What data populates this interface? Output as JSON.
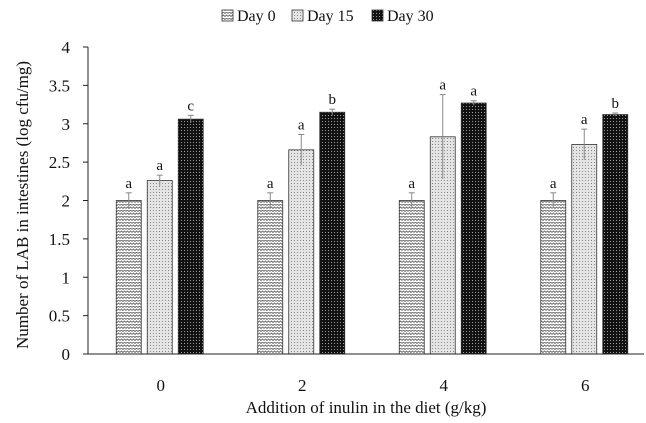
{
  "chart_data": {
    "type": "bar",
    "categories": [
      "0",
      "2",
      "4",
      "6"
    ],
    "series": [
      {
        "name": "Day 0",
        "values": [
          2.0,
          2.0,
          2.0,
          2.0
        ],
        "errors": [
          0.1,
          0.1,
          0.1,
          0.1
        ],
        "labels": [
          "a",
          "a",
          "a",
          "a"
        ],
        "pattern": "zigzag",
        "color": "#ffffff"
      },
      {
        "name": "Day 15",
        "values": [
          2.26,
          2.66,
          2.83,
          2.73
        ],
        "errors": [
          0.07,
          0.2,
          0.55,
          0.2
        ],
        "labels": [
          "a",
          "a",
          "a",
          "a"
        ],
        "pattern": "dots-light",
        "color": "#d8d8d8"
      },
      {
        "name": "Day 30",
        "values": [
          3.06,
          3.15,
          3.27,
          3.12
        ],
        "errors": [
          0.05,
          0.04,
          0.03,
          0.02
        ],
        "labels": [
          "c",
          "b",
          "a",
          "b"
        ],
        "pattern": "dots-dark",
        "color": "#1a1a1a"
      }
    ],
    "yticks": [
      "0",
      "0.5",
      "1",
      "1.5",
      "2",
      "2.5",
      "3",
      "3.5",
      "4"
    ],
    "ylim": [
      0,
      4
    ],
    "xlabel": "Addition of inulin in the diet (g/kg)",
    "ylabel": "Number of LAB in intestines (log cfu/mg)",
    "legend_position": "top-center",
    "grid": false
  }
}
